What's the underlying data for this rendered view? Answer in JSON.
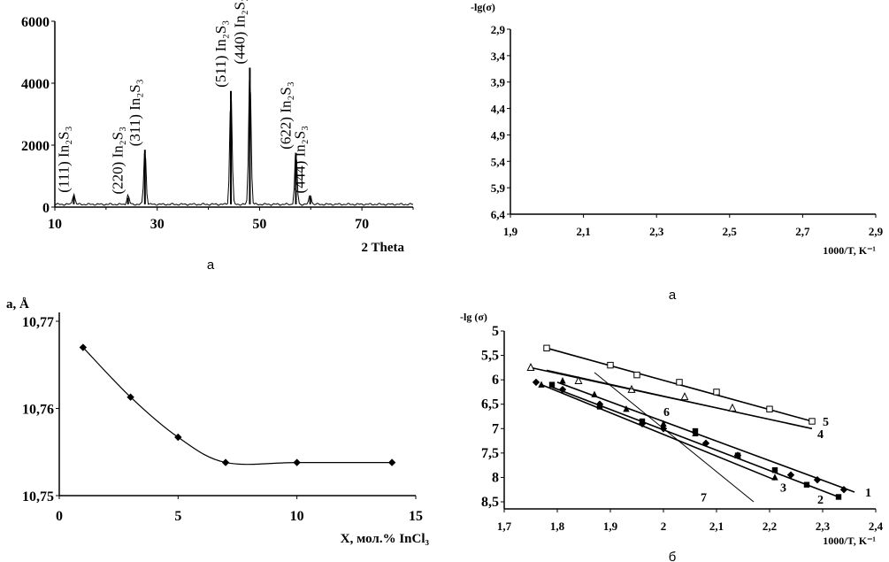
{
  "captions": {
    "top_left": "а",
    "top_right": "а",
    "bottom_right": "б"
  },
  "chart_data": [
    {
      "type": "line",
      "name": "xrd",
      "xlabel": "2 Theta",
      "ylabel": "",
      "xlim": [
        10,
        80
      ],
      "ylim": [
        0,
        6000
      ],
      "x_ticks": [
        "10",
        "30",
        "50",
        "70"
      ],
      "y_ticks": [
        "0",
        "2000",
        "4000",
        "6000"
      ],
      "peaks": [
        {
          "x": 13.7,
          "y": 350,
          "label": "(111) In₂S₃"
        },
        {
          "x": 24.3,
          "y": 300,
          "label": "(220) In₂S₃"
        },
        {
          "x": 27.6,
          "y": 1850,
          "label": "(311) In₂S₃"
        },
        {
          "x": 44.4,
          "y": 3750,
          "label": "(511) In₂S₃"
        },
        {
          "x": 48.1,
          "y": 4500,
          "label": "(440) In₂S₃"
        },
        {
          "x": 57.1,
          "y": 1750,
          "label": "(622) In₂S₃"
        },
        {
          "x": 59.9,
          "y": 330,
          "label": "(444) In₂S₃"
        }
      ]
    },
    {
      "type": "scatter",
      "name": "conductivity-a",
      "xlabel": "1000/T, K⁻¹",
      "ylabel": "-lg(σ)",
      "xlim": [
        1.9,
        2.9
      ],
      "ylim": [
        2.9,
        6.4
      ],
      "y_inverted": true,
      "x_ticks": [
        "1,9",
        "2,1",
        "2,3",
        "2,5",
        "2,7",
        "2,9"
      ],
      "y_ticks": [
        "2,9",
        "3,4",
        "3,9",
        "4,4",
        "4,9",
        "5,4",
        "5,9",
        "6,4"
      ],
      "series": []
    },
    {
      "type": "line",
      "name": "lattice",
      "xlabel": "X, мол.% InCl₃",
      "ylabel": "a, Å",
      "xlim": [
        0,
        15
      ],
      "ylim": [
        10.75,
        10.77
      ],
      "x_ticks": [
        "0",
        "5",
        "10",
        "15"
      ],
      "y_ticks": [
        "10,75",
        "10,76",
        "10,77"
      ],
      "x": [
        1,
        3,
        5,
        7,
        10,
        14
      ],
      "values": [
        10.767,
        10.7613,
        10.7567,
        10.7538,
        10.7538,
        10.7538
      ]
    },
    {
      "type": "line",
      "name": "conductivity-b",
      "xlabel": "1000/T, K⁻¹",
      "ylabel": "-lg (σ)",
      "xlim": [
        1.7,
        2.4
      ],
      "ylim": [
        5,
        8.5
      ],
      "y_inverted": true,
      "x_ticks": [
        "1,7",
        "1,8",
        "1,9",
        "2",
        "2,1",
        "2,2",
        "2,3",
        "2,4"
      ],
      "y_ticks": [
        "5",
        "5,5",
        "6",
        "6,5",
        "7",
        "7,5",
        "8",
        "8,5"
      ],
      "series": [
        {
          "name": "1",
          "marker": "diamond",
          "line": [
            [
              1.8,
              6.05
            ],
            [
              2.36,
              8.3
            ]
          ],
          "x": [
            1.76,
            1.81,
            1.88,
            1.96,
            2.0,
            2.08,
            2.14,
            2.24,
            2.29,
            2.34
          ],
          "values": [
            6.05,
            6.2,
            6.5,
            6.9,
            7.0,
            7.3,
            7.55,
            7.95,
            8.05,
            8.25
          ]
        },
        {
          "name": "2",
          "marker": "square",
          "line": [
            [
              1.79,
              6.15
            ],
            [
              2.33,
              8.4
            ]
          ],
          "x": [
            1.79,
            1.88,
            1.96,
            2.06,
            2.14,
            2.21,
            2.27,
            2.33
          ],
          "values": [
            6.1,
            6.55,
            6.85,
            7.05,
            7.55,
            7.85,
            8.15,
            8.4
          ]
        },
        {
          "name": "3",
          "marker": "triangle",
          "line": [
            [
              1.77,
              6.1
            ],
            [
              2.21,
              8.05
            ]
          ],
          "x": [
            1.77,
            1.81,
            1.87,
            1.93,
            2.0,
            2.06,
            2.14,
            2.21
          ],
          "values": [
            6.1,
            6.02,
            6.3,
            6.6,
            6.9,
            7.1,
            7.55,
            8.0
          ]
        },
        {
          "name": "4",
          "marker": "open-triangle",
          "line": [
            [
              1.75,
              5.75
            ],
            [
              2.28,
              7.0
            ]
          ],
          "x": [
            1.75,
            1.84,
            1.94,
            2.04,
            2.13
          ],
          "values": [
            5.75,
            6.02,
            6.2,
            6.35,
            6.58
          ]
        },
        {
          "name": "5",
          "marker": "open-square",
          "line": [
            [
              1.78,
              5.35
            ],
            [
              2.28,
              6.85
            ]
          ],
          "x": [
            1.78,
            1.9,
            1.95,
            2.03,
            2.1,
            2.2,
            2.28
          ],
          "values": [
            5.35,
            5.7,
            5.9,
            6.05,
            6.25,
            6.6,
            6.85
          ]
        },
        {
          "name": "6",
          "marker": "none",
          "line": [
            [
              1.78,
              5.8
            ],
            [
              2.12,
              6.62
            ]
          ],
          "x": [],
          "values": []
        },
        {
          "name": "7",
          "marker": "none",
          "line": [
            [
              1.87,
              5.85
            ],
            [
              2.17,
              8.5
            ]
          ],
          "x": [],
          "values": []
        }
      ],
      "line_labels": [
        {
          "text": "1",
          "x": 2.38,
          "y": 8.3
        },
        {
          "text": "2",
          "x": 2.29,
          "y": 8.45
        },
        {
          "text": "3",
          "x": 2.22,
          "y": 8.2
        },
        {
          "text": "4",
          "x": 2.29,
          "y": 7.1
        },
        {
          "text": "5",
          "x": 2.3,
          "y": 6.85
        },
        {
          "text": "6",
          "x": 2.0,
          "y": 6.65
        },
        {
          "text": "7",
          "x": 2.07,
          "y": 8.4
        }
      ]
    }
  ]
}
